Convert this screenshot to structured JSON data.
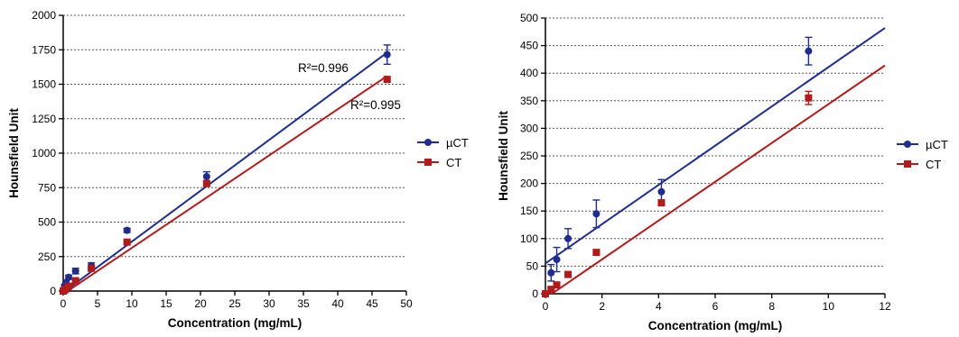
{
  "chart_data": [
    {
      "type": "scatter",
      "xlabel": "Concentration (mg/mL)",
      "ylabel": "Hounsfield Unit",
      "xlim": [
        0,
        50
      ],
      "ylim": [
        0,
        2000
      ],
      "xticks": [
        "0",
        "5",
        "10",
        "15",
        "20",
        "25",
        "30",
        "35",
        "40",
        "45",
        "50"
      ],
      "yticks": [
        "0",
        "250",
        "500",
        "750",
        "1000",
        "1250",
        "1500",
        "1750",
        "2000"
      ],
      "grid": "horizontal dashed",
      "legend": "right",
      "series": [
        {
          "name": "µCT",
          "color": "#1f2d8f",
          "marker": "circle",
          "x": [
            0,
            0.2,
            0.4,
            0.8,
            1.8,
            4.1,
            9.3,
            20.9,
            47.2
          ],
          "y": [
            0,
            38,
            62,
            100,
            145,
            185,
            440,
            830,
            1715
          ],
          "err": [
            0,
            10,
            12,
            15,
            20,
            20,
            15,
            35,
            70
          ],
          "fit": {
            "x": [
              0,
              47.2
            ],
            "y": [
              -10,
              1730
            ]
          },
          "annotation": "R²=0.996"
        },
        {
          "name": "CT",
          "color": "#b01c1c",
          "marker": "square",
          "x": [
            0,
            0.2,
            0.4,
            0.8,
            1.8,
            4.1,
            9.3,
            20.9,
            47.2
          ],
          "y": [
            0,
            8,
            16,
            35,
            75,
            165,
            355,
            780,
            1535
          ],
          "err": [
            0,
            4,
            5,
            6,
            8,
            10,
            12,
            20,
            15
          ],
          "fit": {
            "x": [
              0,
              47.2
            ],
            "y": [
              -22,
              1560
            ]
          },
          "annotation": "R²=0.995"
        }
      ]
    },
    {
      "type": "scatter",
      "xlabel": "Concentration (mg/mL)",
      "ylabel": "Hounsfield Unit",
      "xlim": [
        0,
        12
      ],
      "ylim": [
        0,
        500
      ],
      "xticks": [
        "0",
        "2",
        "4",
        "6",
        "8",
        "10",
        "12"
      ],
      "yticks": [
        "0",
        "50",
        "100",
        "150",
        "200",
        "250",
        "300",
        "350",
        "400",
        "450",
        "500"
      ],
      "grid": "horizontal dashed",
      "legend": "right",
      "series": [
        {
          "name": "µCT",
          "color": "#1f2d8f",
          "marker": "circle",
          "x": [
            0,
            0.2,
            0.4,
            0.8,
            1.8,
            4.1,
            9.3
          ],
          "y": [
            0,
            38,
            62,
            100,
            145,
            185,
            440
          ],
          "err": [
            0,
            15,
            22,
            18,
            25,
            22,
            25
          ],
          "fit": {
            "x": [
              0,
              12
            ],
            "y": [
              55,
              482
            ]
          }
        },
        {
          "name": "CT",
          "color": "#b01c1c",
          "marker": "square",
          "x": [
            0,
            0.2,
            0.4,
            0.8,
            1.8,
            4.1,
            9.3
          ],
          "y": [
            0,
            8,
            16,
            35,
            75,
            165,
            355
          ],
          "err": [
            0,
            3,
            4,
            4,
            4,
            5,
            12
          ],
          "fit": {
            "x": [
              0,
              12
            ],
            "y": [
              -8,
              414
            ]
          }
        }
      ]
    }
  ]
}
